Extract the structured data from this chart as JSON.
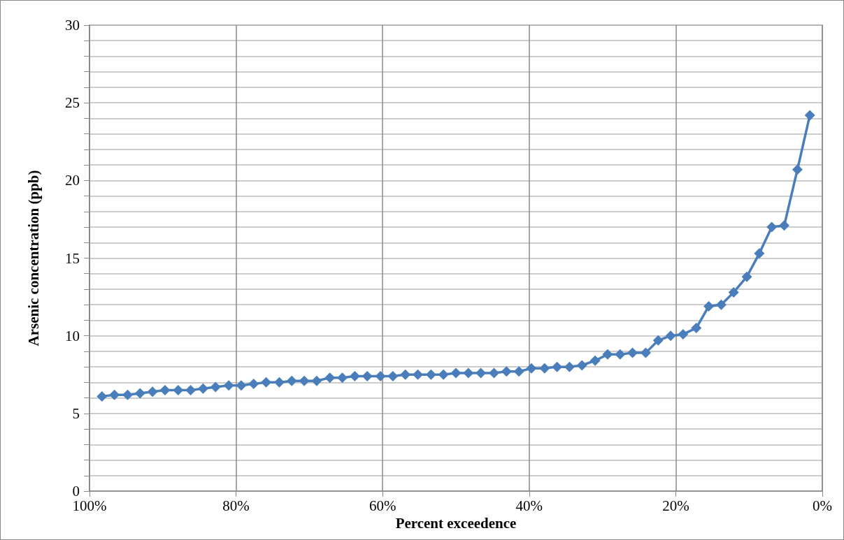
{
  "chart_data": {
    "type": "line",
    "xlabel": "Percent exceedence",
    "ylabel": "Arsenic concentration (ppb)",
    "x": [
      98.3,
      96.6,
      94.8,
      93.1,
      91.4,
      89.7,
      87.9,
      86.2,
      84.5,
      82.8,
      81.0,
      79.3,
      77.6,
      75.9,
      74.1,
      72.4,
      70.7,
      69.0,
      67.2,
      65.5,
      63.8,
      62.1,
      60.3,
      58.6,
      56.9,
      55.2,
      53.4,
      51.7,
      50.0,
      48.3,
      46.6,
      44.8,
      43.1,
      41.4,
      39.7,
      37.9,
      36.2,
      34.5,
      32.8,
      31.0,
      29.3,
      27.6,
      25.9,
      24.1,
      22.4,
      20.7,
      19.0,
      17.2,
      15.5,
      13.8,
      12.1,
      10.3,
      8.6,
      6.9,
      5.2,
      3.4,
      1.7
    ],
    "series": [
      {
        "color": "#4a7ebb",
        "values": [
          6.1,
          6.2,
          6.2,
          6.3,
          6.4,
          6.5,
          6.5,
          6.5,
          6.6,
          6.7,
          6.8,
          6.8,
          6.9,
          7.0,
          7.0,
          7.1,
          7.1,
          7.1,
          7.3,
          7.3,
          7.4,
          7.4,
          7.4,
          7.4,
          7.5,
          7.5,
          7.5,
          7.5,
          7.6,
          7.6,
          7.6,
          7.6,
          7.7,
          7.7,
          7.9,
          7.9,
          8.0,
          8.0,
          8.1,
          8.4,
          8.8,
          8.8,
          8.9,
          8.9,
          9.7,
          10.0,
          10.1,
          10.5,
          11.9,
          12.0,
          12.8,
          13.8,
          15.3,
          17.0,
          17.1,
          20.7,
          24.2
        ]
      }
    ],
    "xlim": [
      100,
      0
    ],
    "xticks": [
      {
        "value": 100,
        "label": "100%"
      },
      {
        "value": 80,
        "label": "80%"
      },
      {
        "value": 60,
        "label": "60%"
      },
      {
        "value": 40,
        "label": "40%"
      },
      {
        "value": 20,
        "label": "20%"
      },
      {
        "value": 0,
        "label": "0%"
      }
    ],
    "ylim": [
      0,
      30
    ],
    "yticks": [
      0,
      {
        "value": 1,
        "label": null
      },
      {
        "value": 2,
        "label": null
      },
      {
        "value": 3,
        "label": null
      },
      {
        "value": 4,
        "label": null
      },
      5,
      {
        "value": 6,
        "label": null
      },
      {
        "value": 7,
        "label": null
      },
      {
        "value": 8,
        "label": null
      },
      {
        "value": 9,
        "label": null
      },
      10,
      {
        "value": 11,
        "label": null
      },
      {
        "value": 12,
        "label": null
      },
      {
        "value": 13,
        "label": null
      },
      {
        "value": 14,
        "label": null
      },
      15,
      {
        "value": 16,
        "label": null
      },
      {
        "value": 17,
        "label": null
      },
      {
        "value": 18,
        "label": null
      },
      {
        "value": 19,
        "label": null
      },
      20,
      {
        "value": 21,
        "label": null
      },
      {
        "value": 22,
        "label": null
      },
      {
        "value": 23,
        "label": null
      },
      {
        "value": 24,
        "label": null
      },
      25,
      {
        "value": 26,
        "label": null
      },
      {
        "value": 27,
        "label": null
      },
      {
        "value": 28,
        "label": null
      },
      {
        "value": 29,
        "label": null
      },
      30
    ],
    "grid": true,
    "marker": "diamond",
    "line_style": "solid"
  }
}
